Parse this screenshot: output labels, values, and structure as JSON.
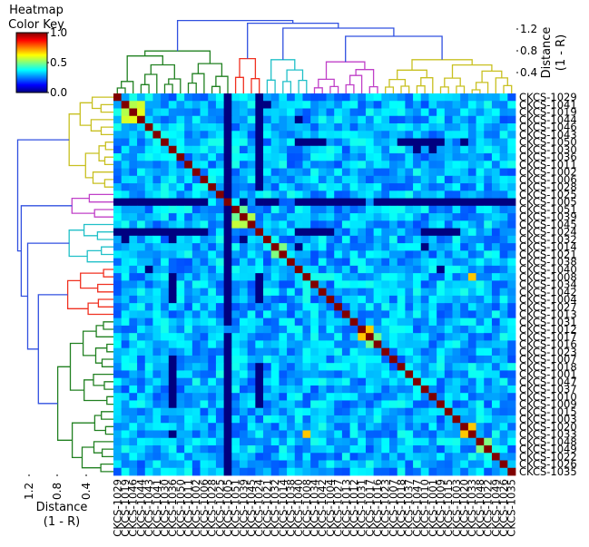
{
  "chart_data": {
    "type": "heatmap",
    "title": "",
    "color_key": {
      "title_line1": "Heatmap",
      "title_line2": "Color Key",
      "ticks": [
        "0.0",
        "0.5",
        "1.0"
      ],
      "range": [
        0.0,
        1.0
      ],
      "colormap": [
        "#00007f",
        "#0000ff",
        "#007fff",
        "#00ffff",
        "#7fff7f",
        "#ffff00",
        "#ff7f00",
        "#ff0000",
        "#7f0000"
      ]
    },
    "row_labels": [
      "CKCS-1029",
      "CKCS-1041",
      "CKCS-1019",
      "CKCS-1044",
      "CKCS-1046",
      "CKCS-1043",
      "CKCS-1050",
      "CKCS-1030",
      "CKCS-1036",
      "CKCS-1011",
      "CKCS-1002",
      "CKCS-1006",
      "CKCS-1028",
      "CKCS-1025",
      "CKCS-1005",
      "CKCS-1051",
      "CKCS-1039",
      "CKCS-1045",
      "CKCS-1024",
      "CKCS-1032",
      "CKCS-1014",
      "CKCS-1021",
      "CKCS-1038",
      "CKCS-1040",
      "CKCS-1008",
      "CKCS-1034",
      "CKCS-1042",
      "CKCS-1004",
      "CKCS-1027",
      "CKCS-1013",
      "CKCS-1031",
      "CKCS-1012",
      "CKCS-1017",
      "CKCS-1016",
      "CKCS-1023",
      "CKCS-1007",
      "CKCS-1018",
      "CKCS-1001",
      "CKCS-1047",
      "CKCS-1037",
      "CKCS-1010",
      "CKCS-1009",
      "CKCS-1015",
      "CKCS-1003",
      "CKCS-1020",
      "CKCS-1033",
      "CKCS-1048",
      "CKCS-1049",
      "CKCS-1022",
      "CKCS-1026",
      "CKCS-1035"
    ],
    "col_labels": [
      "CKCS-1029",
      "CKCS-1019",
      "CKCS-1046",
      "CKCS-1044",
      "CKCS-1043",
      "CKCS-1041",
      "CKCS-1030",
      "CKCS-1036",
      "CKCS-1050",
      "CKCS-1011",
      "CKCS-1002",
      "CKCS-1006",
      "CKCS-1028",
      "CKCS-1025",
      "CKCS-1005",
      "CKCS-1051",
      "CKCS-1039",
      "CKCS-1045",
      "CKCS-1024",
      "CKCS-1021",
      "CKCS-1032",
      "CKCS-1014",
      "CKCS-1038",
      "CKCS-1040",
      "CKCS-1008",
      "CKCS-1034",
      "CKCS-1042",
      "CKCS-1004",
      "CKCS-1027",
      "CKCS-1013",
      "CKCS-1012",
      "CKCS-1031",
      "CKCS-1017",
      "CKCS-1016",
      "CKCS-1023",
      "CKCS-1007",
      "CKCS-1018",
      "CKCS-1037",
      "CKCS-1047",
      "CKCS-1010",
      "CKCS-1001",
      "CKCS-1009",
      "CKCS-1015",
      "CKCS-1003",
      "CKCS-1020",
      "CKCS-1033",
      "CKCS-1048",
      "CKCS-1022",
      "CKCS-1049",
      "CKCS-1026",
      "CKCS-1035"
    ],
    "diagonal_value": 1.0,
    "typical_offdiag_range": [
      0.2,
      0.4
    ],
    "low_value_cells": {
      "value": 0.0,
      "row_ranges": [
        {
          "row": 14,
          "cols": [
            [
              0,
              11
            ],
            [
              16,
              16
            ],
            [
              18,
              20
            ],
            [
              23,
              31
            ],
            [
              33,
              50
            ]
          ]
        },
        {
          "row": 18,
          "cols": [
            [
              0,
              11
            ],
            [
              14,
              14
            ],
            [
              23,
              27
            ],
            [
              39,
              43
            ]
          ]
        },
        {
          "row": 1,
          "cols": [
            [
              18,
              19
            ]
          ]
        },
        {
          "row": 3,
          "cols": [
            [
              23,
              23
            ]
          ]
        },
        {
          "row": 6,
          "cols": [
            [
              14,
              14
            ],
            [
              18,
              18
            ],
            [
              23,
              26
            ],
            [
              36,
              41
            ],
            [
              44,
              44
            ]
          ]
        },
        {
          "row": 7,
          "cols": [
            [
              38,
              38
            ],
            [
              40,
              40
            ]
          ]
        },
        {
          "row": 19,
          "cols": [
            [
              1,
              1
            ],
            [
              7,
              7
            ]
          ]
        },
        {
          "row": 20,
          "cols": [
            [
              23,
              23
            ],
            [
              39,
              39
            ]
          ]
        },
        {
          "row": 23,
          "cols": [
            [
              4,
              4
            ],
            [
              41,
              41
            ]
          ]
        }
      ],
      "col_ranges": [
        {
          "col": 14,
          "rows": [
            [
              0,
              13
            ],
            [
              15,
              30
            ],
            [
              32,
              50
            ]
          ]
        },
        {
          "col": 18,
          "rows": [
            [
              0,
              12
            ],
            [
              24,
              27
            ]
          ]
        },
        {
          "col": 7,
          "rows": [
            [
              19,
              19
            ],
            [
              24,
              27
            ],
            [
              35,
              41
            ],
            [
              45,
              45
            ]
          ]
        },
        {
          "col": 16,
          "rows": [
            [
              19,
              19
            ]
          ]
        },
        {
          "col": 18,
          "rows": [
            [
              36,
              41
            ]
          ]
        }
      ]
    },
    "high_value_cells": [
      {
        "row": 1,
        "col": 2,
        "value": 0.55
      },
      {
        "row": 1,
        "col": 3,
        "value": 0.58
      },
      {
        "row": 2,
        "col": 1,
        "value": 0.55
      },
      {
        "row": 2,
        "col": 3,
        "value": 0.6
      },
      {
        "row": 3,
        "col": 1,
        "value": 0.58
      },
      {
        "row": 3,
        "col": 2,
        "value": 0.6
      },
      {
        "row": 15,
        "col": 16,
        "value": 0.48
      },
      {
        "row": 16,
        "col": 15,
        "value": 0.48
      },
      {
        "row": 16,
        "col": 17,
        "value": 0.55
      },
      {
        "row": 17,
        "col": 15,
        "value": 0.57
      },
      {
        "row": 17,
        "col": 16,
        "value": 0.55
      },
      {
        "row": 20,
        "col": 21,
        "value": 0.5
      },
      {
        "row": 21,
        "col": 20,
        "value": 0.5
      },
      {
        "row": 24,
        "col": 45,
        "value": 0.68
      },
      {
        "row": 31,
        "col": 32,
        "value": 0.68
      },
      {
        "row": 32,
        "col": 31,
        "value": 0.68
      },
      {
        "row": 32,
        "col": 33,
        "value": 0.48
      },
      {
        "row": 33,
        "col": 32,
        "value": 0.48
      },
      {
        "row": 44,
        "col": 45,
        "value": 0.68
      },
      {
        "row": 45,
        "col": 44,
        "value": 0.68
      },
      {
        "row": 45,
        "col": 24,
        "value": 0.68
      },
      {
        "row": 46,
        "col": 47,
        "value": 0.5
      },
      {
        "row": 47,
        "col": 46,
        "value": 0.5
      }
    ],
    "dendrogram": {
      "axis_label_line1": "Distance",
      "axis_label_line2": "(1 - R)",
      "ticks": [
        "1.2",
        "0.8",
        "0.4"
      ],
      "tick_values": [
        1.2,
        0.8,
        0.4
      ],
      "clusters": [
        {
          "name": "yellow",
          "color": "#c8c020",
          "row_range": [
            0,
            12
          ],
          "col_range": [
            34,
            50
          ]
        },
        {
          "name": "magenta",
          "color": "#c040c8",
          "row_range": [
            13,
            16
          ],
          "col_range": [
            25,
            33
          ]
        },
        {
          "name": "cyan",
          "color": "#20c0c8",
          "row_range": [
            17,
            22
          ],
          "col_range": [
            19,
            24
          ]
        },
        {
          "name": "red",
          "color": "#f03020",
          "row_range": [
            23,
            29
          ],
          "col_range": [
            15,
            18
          ]
        },
        {
          "name": "green",
          "color": "#208020",
          "row_range": [
            30,
            50
          ],
          "col_range": [
            0,
            14
          ]
        }
      ],
      "root_color": "#3050e0"
    }
  }
}
